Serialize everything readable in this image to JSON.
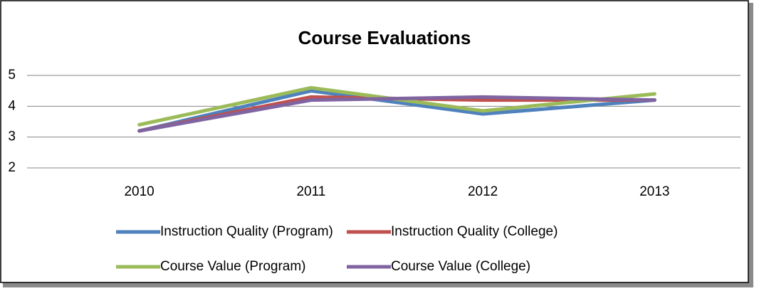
{
  "chart_data": {
    "type": "line",
    "title": "Course Evaluations",
    "categories": [
      "2010",
      "2011",
      "2012",
      "2013"
    ],
    "series": [
      {
        "name": "Instruction Quality (Program)",
        "color": "#4f81bd",
        "values": [
          3.2,
          4.5,
          3.75,
          4.2
        ]
      },
      {
        "name": "Instruction Quality (College)",
        "color": "#c0504d",
        "values": [
          3.2,
          4.3,
          4.2,
          4.2
        ]
      },
      {
        "name": "Course Value (Program)",
        "color": "#9bbb59",
        "values": [
          3.4,
          4.6,
          3.85,
          4.4
        ]
      },
      {
        "name": "Course Value (College)",
        "color": "#8064a2",
        "values": [
          3.2,
          4.2,
          4.3,
          4.2
        ]
      }
    ],
    "ylim": [
      2,
      5
    ],
    "yticks": [
      2,
      3,
      4,
      5
    ],
    "grid": true
  }
}
